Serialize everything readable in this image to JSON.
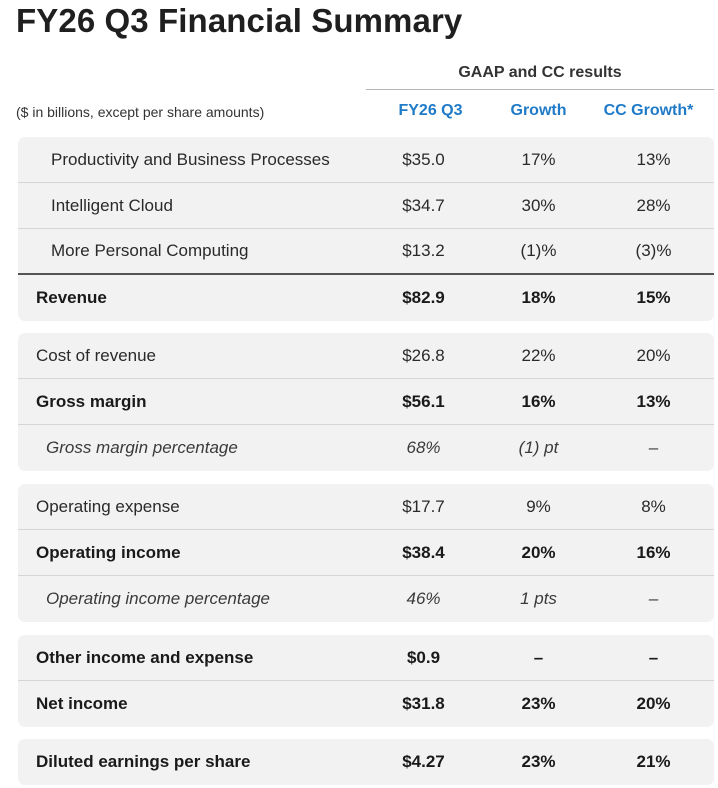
{
  "title": "FY26 Q3 Financial Summary",
  "colors": {
    "accent": "#1f7ac8"
  },
  "header": {
    "group_label": "GAAP and CC results",
    "units_note": "($ in billions, except per share amounts)",
    "columns": [
      "FY26 Q3",
      "Growth",
      "CC Growth*"
    ]
  },
  "blocks": [
    {
      "rows": [
        {
          "label": "Productivity and Business Processes",
          "value": "$35.0",
          "growth": "17%",
          "cc_growth": "13%"
        },
        {
          "label": "Intelligent Cloud",
          "value": "$34.7",
          "growth": "30%",
          "cc_growth": "28%"
        },
        {
          "label": "More Personal Computing",
          "value": "$13.2",
          "growth": "(1)%",
          "cc_growth": "(3)%"
        },
        {
          "label": "Revenue",
          "value": "$82.9",
          "growth": "18%",
          "cc_growth": "15%"
        }
      ]
    },
    {
      "rows": [
        {
          "label": "Cost of revenue",
          "value": "$26.8",
          "growth": "22%",
          "cc_growth": "20%"
        },
        {
          "label": "Gross margin",
          "value": "$56.1",
          "growth": "16%",
          "cc_growth": "13%"
        },
        {
          "label": "Gross margin percentage",
          "value": "68%",
          "growth": "(1) pt",
          "cc_growth": "–"
        }
      ]
    },
    {
      "rows": [
        {
          "label": "Operating expense",
          "value": "$17.7",
          "growth": "9%",
          "cc_growth": "8%"
        },
        {
          "label": "Operating income",
          "value": "$38.4",
          "growth": "20%",
          "cc_growth": "16%"
        },
        {
          "label": "Operating income percentage",
          "value": "46%",
          "growth": "1 pts",
          "cc_growth": "–"
        }
      ]
    },
    {
      "rows": [
        {
          "label": "Other income and expense",
          "value": "$0.9",
          "growth": "–",
          "cc_growth": "–"
        },
        {
          "label": "Net income",
          "value": "$31.8",
          "growth": "23%",
          "cc_growth": "20%"
        }
      ]
    },
    {
      "rows": [
        {
          "label": "Diluted earnings per share",
          "value": "$4.27",
          "growth": "23%",
          "cc_growth": "21%"
        }
      ]
    }
  ]
}
